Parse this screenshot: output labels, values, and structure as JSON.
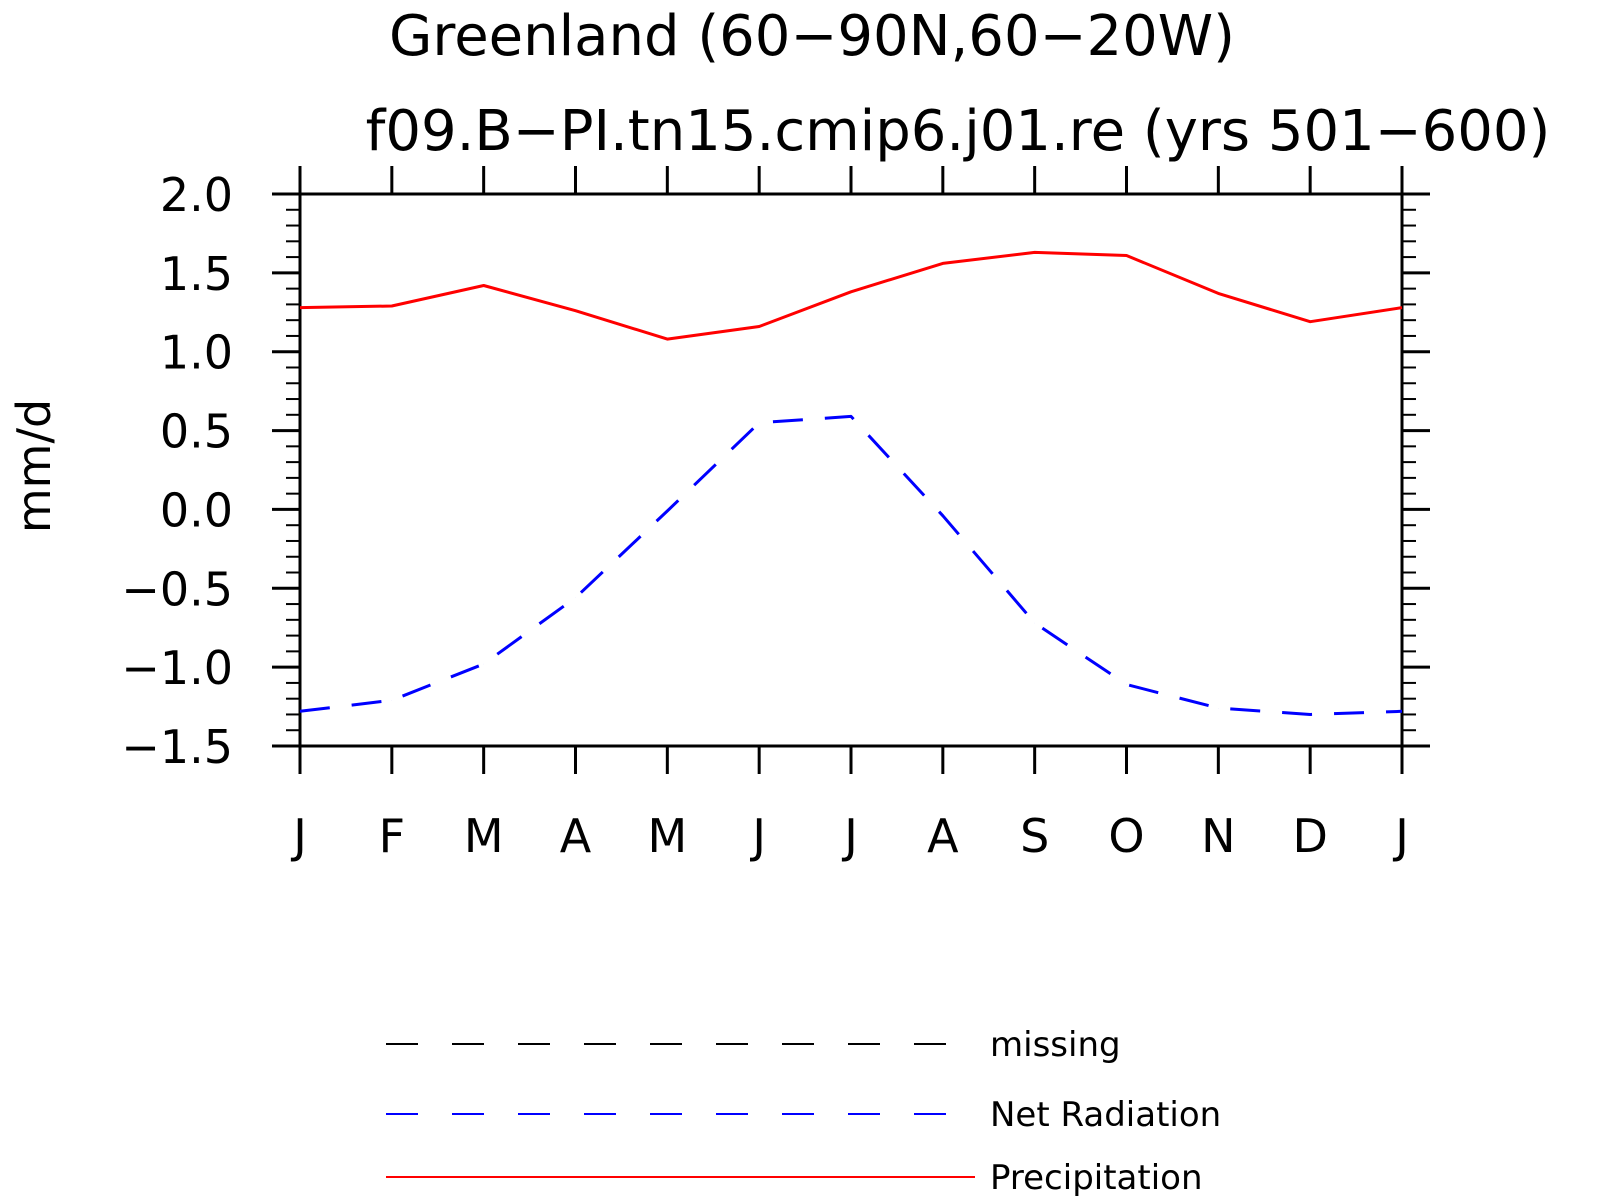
{
  "chart_data": {
    "type": "line",
    "title": "Greenland (60−90N,60−20W)",
    "subtitle": "f09.B−PI.tn15.cmip6.j01.re (yrs 501−600)",
    "xlabel": "",
    "ylabel": "mm/d",
    "x": [
      "J",
      "F",
      "M",
      "A",
      "M",
      "J",
      "J",
      "A",
      "S",
      "O",
      "N",
      "D",
      "J"
    ],
    "ylim": [
      -1.5,
      2.0
    ],
    "yticks": [
      "2.0",
      "1.5",
      "1.0",
      "0.5",
      "0.0",
      "−0.5",
      "−1.0",
      "−1.5"
    ],
    "grid": false,
    "legend_position": "bottom",
    "series": [
      {
        "name": "Precipitation",
        "color": "#ff0000",
        "style": "solid",
        "values": [
          1.28,
          1.29,
          1.42,
          1.26,
          1.08,
          1.16,
          1.38,
          1.56,
          1.63,
          1.61,
          1.37,
          1.19,
          1.28
        ]
      },
      {
        "name": "Net Radiation",
        "color": "#0000ff",
        "style": "dashed",
        "values": [
          -1.28,
          -1.21,
          -0.98,
          -0.56,
          -0.01,
          0.55,
          0.59,
          -0.04,
          -0.72,
          -1.11,
          -1.26,
          -1.3,
          -1.28
        ]
      }
    ],
    "legend": [
      {
        "label": "missing",
        "color": "#000000",
        "style": "dashed"
      },
      {
        "label": "Net Radiation",
        "color": "#0000ff",
        "style": "dashed"
      },
      {
        "label": "Precipitation",
        "color": "#ff0000",
        "style": "solid"
      }
    ]
  }
}
